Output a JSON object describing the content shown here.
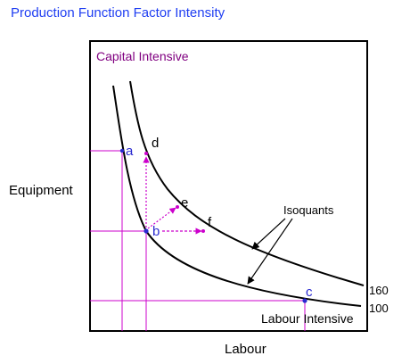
{
  "title": "Production Function Factor Intensity",
  "axes": {
    "y_label": "Equipment",
    "x_label": "Labour"
  },
  "regions": {
    "capital_intensive": "Capital Intensive",
    "labour_intensive": "Labour Intensive"
  },
  "isoquants": {
    "label": "Isoquants",
    "levels": [
      "160",
      "100"
    ]
  },
  "points": {
    "a": "a",
    "b": "b",
    "c": "c",
    "d": "d",
    "e": "e",
    "f": "f"
  },
  "colors": {
    "title": "#1f3ef2",
    "guide_lines": "#cc00cc",
    "region_label": "#800080",
    "point_label": "#2a2ad0",
    "curve": "#000000"
  }
}
